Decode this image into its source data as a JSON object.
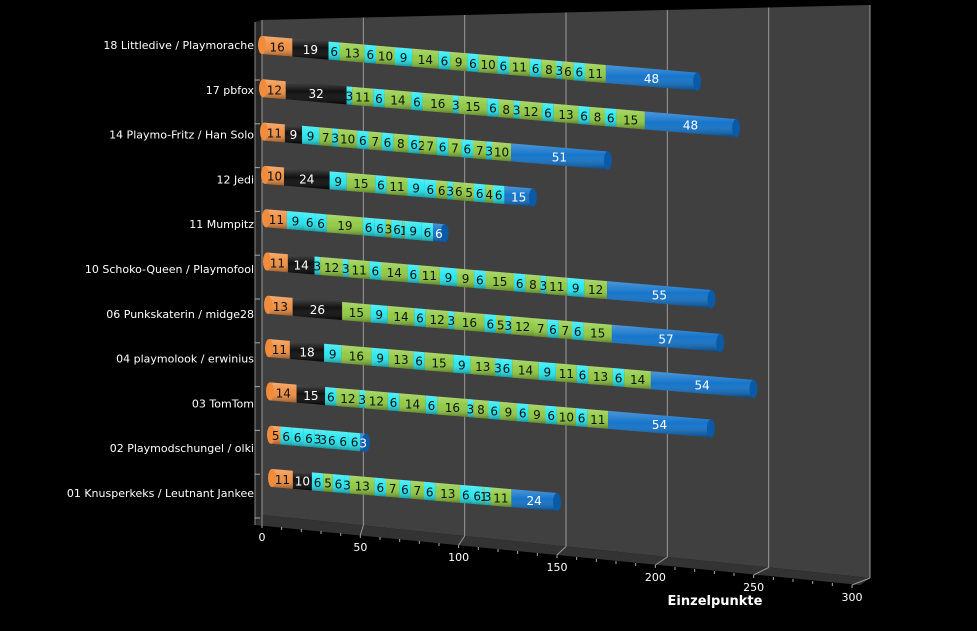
{
  "chart_data": {
    "type": "bar",
    "orientation": "horizontal",
    "stacked": true,
    "style": "3d-cylinder",
    "title": "",
    "xlabel": "Einzelpunkte",
    "ylabel": "",
    "xlim": [
      0,
      300
    ],
    "x_ticks": [
      "0",
      "50",
      "100",
      "150",
      "200",
      "250",
      "300"
    ],
    "grid": true,
    "legend": "none",
    "segment_colors": {
      "first": "#f08c3c",
      "second": "#050505",
      "alt_a": "#1ee6f0",
      "alt_b": "#8cc83c",
      "last": "#0a6ec8"
    },
    "rows": [
      {
        "label": "18 Littledive / Playmorache",
        "values": [
          16,
          19,
          6,
          13,
          6,
          10,
          9,
          14,
          6,
          9,
          6,
          10,
          6,
          11,
          6,
          8,
          3,
          6,
          6,
          11,
          48
        ],
        "colors": [
          "first",
          "second",
          "alt_a",
          "alt_b",
          "alt_a",
          "alt_b",
          "alt_a",
          "alt_b",
          "alt_a",
          "alt_b",
          "alt_a",
          "alt_b",
          "alt_a",
          "alt_b",
          "alt_a",
          "alt_b",
          "alt_a",
          "alt_b",
          "alt_a",
          "alt_b",
          "last"
        ]
      },
      {
        "label": "17 pbfox",
        "values": [
          12,
          32,
          3,
          11,
          6,
          14,
          6,
          16,
          3,
          15,
          6,
          8,
          3,
          12,
          6,
          13,
          6,
          8,
          6,
          15,
          48
        ],
        "colors": [
          "first",
          "second",
          "alt_a",
          "alt_b",
          "alt_a",
          "alt_b",
          "alt_a",
          "alt_b",
          "alt_a",
          "alt_b",
          "alt_a",
          "alt_b",
          "alt_a",
          "alt_b",
          "alt_a",
          "alt_b",
          "alt_a",
          "alt_b",
          "alt_a",
          "alt_b",
          "last"
        ]
      },
      {
        "label": "14 Playmo-Fritz / Han Solo",
        "values": [
          11,
          9,
          9,
          7,
          3,
          10,
          6,
          7,
          6,
          8,
          6,
          2,
          7,
          6,
          7,
          6,
          7,
          3,
          10,
          51
        ],
        "colors": [
          "first",
          "second",
          "alt_a",
          "alt_b",
          "alt_a",
          "alt_b",
          "alt_a",
          "alt_b",
          "alt_a",
          "alt_b",
          "alt_a",
          "alt_b",
          "alt_b",
          "alt_a",
          "alt_b",
          "alt_a",
          "alt_b",
          "alt_a",
          "alt_b",
          "last"
        ]
      },
      {
        "label": "12 Jedi",
        "values": [
          10,
          24,
          9,
          15,
          6,
          11,
          9,
          6,
          6,
          3,
          6,
          5,
          6,
          4,
          6,
          15
        ],
        "colors": [
          "first",
          "second",
          "alt_a",
          "alt_b",
          "alt_a",
          "alt_b",
          "alt_a",
          "alt_a",
          "alt_b",
          "alt_a",
          "alt_b",
          "alt_b",
          "alt_a",
          "alt_b",
          "alt_a",
          "last"
        ]
      },
      {
        "label": "11 Mumpitz",
        "values": [
          11,
          9,
          6,
          6,
          19,
          6,
          6,
          3,
          6,
          1,
          9,
          6,
          6
        ],
        "colors": [
          "first",
          "alt_a",
          "alt_a",
          "alt_a",
          "alt_b",
          "alt_a",
          "alt_a",
          "alt_b",
          "alt_a",
          "alt_b",
          "alt_a",
          "alt_a",
          "last"
        ]
      },
      {
        "label": "10 Schoko-Queen / Playmofool",
        "values": [
          11,
          14,
          3,
          12,
          3,
          11,
          6,
          14,
          6,
          11,
          9,
          9,
          6,
          15,
          6,
          8,
          3,
          11,
          9,
          12,
          55
        ],
        "colors": [
          "first",
          "second",
          "alt_a",
          "alt_b",
          "alt_a",
          "alt_b",
          "alt_a",
          "alt_b",
          "alt_a",
          "alt_b",
          "alt_a",
          "alt_b",
          "alt_a",
          "alt_b",
          "alt_a",
          "alt_b",
          "alt_a",
          "alt_b",
          "alt_a",
          "alt_b",
          "last"
        ]
      },
      {
        "label": "06 Punkskaterin / midge28",
        "values": [
          13,
          26,
          15,
          9,
          14,
          6,
          12,
          3,
          16,
          6,
          5,
          3,
          12,
          7,
          6,
          7,
          6,
          15,
          57
        ],
        "colors": [
          "first",
          "second",
          "alt_b",
          "alt_a",
          "alt_b",
          "alt_a",
          "alt_b",
          "alt_a",
          "alt_b",
          "alt_a",
          "alt_b",
          "alt_a",
          "alt_b",
          "alt_b",
          "alt_a",
          "alt_b",
          "alt_a",
          "alt_b",
          "last"
        ]
      },
      {
        "label": "04 playmolook / erwinius",
        "values": [
          11,
          18,
          9,
          16,
          9,
          13,
          6,
          15,
          9,
          13,
          3,
          6,
          14,
          9,
          11,
          6,
          13,
          6,
          14,
          54
        ],
        "colors": [
          "first",
          "second",
          "alt_a",
          "alt_b",
          "alt_a",
          "alt_b",
          "alt_a",
          "alt_b",
          "alt_a",
          "alt_b",
          "alt_a",
          "alt_a",
          "alt_b",
          "alt_a",
          "alt_b",
          "alt_a",
          "alt_b",
          "alt_a",
          "alt_b",
          "last"
        ]
      },
      {
        "label": "03 TomTom",
        "values": [
          14,
          15,
          6,
          12,
          3,
          12,
          6,
          14,
          6,
          16,
          3,
          8,
          6,
          9,
          6,
          9,
          6,
          10,
          6,
          11,
          54
        ],
        "colors": [
          "first",
          "second",
          "alt_a",
          "alt_b",
          "alt_a",
          "alt_b",
          "alt_a",
          "alt_b",
          "alt_a",
          "alt_b",
          "alt_a",
          "alt_b",
          "alt_a",
          "alt_b",
          "alt_a",
          "alt_b",
          "alt_a",
          "alt_b",
          "alt_a",
          "alt_b",
          "last"
        ]
      },
      {
        "label": "02 Playmodschungel / olki",
        "values": [
          5,
          6,
          6,
          6,
          3,
          3,
          6,
          6,
          6,
          3
        ],
        "colors": [
          "first",
          "alt_a",
          "alt_a",
          "alt_a",
          "alt_a",
          "alt_a",
          "alt_a",
          "alt_a",
          "alt_a",
          "last"
        ]
      },
      {
        "label": "01 Knusperkeks / Leutnant Jankee",
        "values": [
          11,
          10,
          6,
          5,
          6,
          3,
          13,
          6,
          7,
          6,
          7,
          6,
          13,
          6,
          6,
          1,
          3,
          11,
          24
        ],
        "colors": [
          "first",
          "second",
          "alt_a",
          "alt_b",
          "alt_a",
          "alt_a",
          "alt_b",
          "alt_a",
          "alt_b",
          "alt_a",
          "alt_b",
          "alt_a",
          "alt_b",
          "alt_a",
          "alt_a",
          "alt_b",
          "alt_a",
          "alt_b",
          "last"
        ]
      }
    ]
  }
}
